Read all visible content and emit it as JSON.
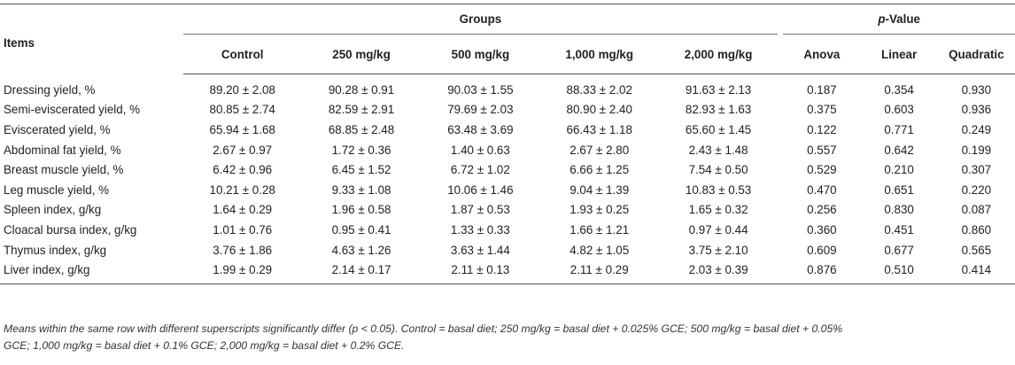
{
  "header": {
    "items": "Items",
    "groups": "Groups",
    "pvalue_italic": "p",
    "pvalue_rest": "-Value",
    "group_columns": [
      "Control",
      "250 mg/kg",
      "500 mg/kg",
      "1,000 mg/kg",
      "2,000 mg/kg"
    ],
    "p_columns": [
      "Anova",
      "Linear",
      "Quadratic"
    ]
  },
  "rows": [
    {
      "label": "Dressing yield, %",
      "values": [
        "89.20 ± 2.08",
        "90.28 ± 0.91",
        "90.03 ± 1.55",
        "88.33 ± 2.02",
        "91.63 ± 2.13"
      ],
      "p": [
        "0.187",
        "0.354",
        "0.930"
      ]
    },
    {
      "label": "Semi-eviscerated yield, %",
      "values": [
        "80.85 ± 2.74",
        "82.59 ± 2.91",
        "79.69 ± 2.03",
        "80.90 ± 2.40",
        "82.93 ± 1.63"
      ],
      "p": [
        "0.375",
        "0.603",
        "0.936"
      ]
    },
    {
      "label": "Eviscerated yield, %",
      "values": [
        "65.94 ± 1.68",
        "68.85 ± 2.48",
        "63.48 ± 3.69",
        "66.43 ± 1.18",
        "65.60 ± 1.45"
      ],
      "p": [
        "0.122",
        "0.771",
        "0.249"
      ]
    },
    {
      "label": "Abdominal fat yield, %",
      "values": [
        "2.67 ± 0.97",
        "1.72 ± 0.36",
        "1.40 ± 0.63",
        "2.67 ± 2.80",
        "2.43 ± 1.48"
      ],
      "p": [
        "0.557",
        "0.642",
        "0.199"
      ]
    },
    {
      "label": "Breast muscle yield, %",
      "values": [
        "6.42 ± 0.96",
        "6.45 ± 1.52",
        "6.72 ± 1.02",
        "6.66 ± 1.25",
        "7.54 ± 0.50"
      ],
      "p": [
        "0.529",
        "0.210",
        "0.307"
      ]
    },
    {
      "label": "Leg muscle yield, %",
      "values": [
        "10.21 ± 0.28",
        "9.33 ± 1.08",
        "10.06 ± 1.46",
        "9.04 ± 1.39",
        "10.83 ± 0.53"
      ],
      "p": [
        "0.470",
        "0.651",
        "0.220"
      ]
    },
    {
      "label": "Spleen index, g/kg",
      "values": [
        "1.64 ± 0.29",
        "1.96 ± 0.58",
        "1.87 ± 0.53",
        "1.93 ± 0.25",
        "1.65 ± 0.32"
      ],
      "p": [
        "0.256",
        "0.830",
        "0.087"
      ]
    },
    {
      "label": "Cloacal bursa index, g/kg",
      "values": [
        "1.01 ± 0.76",
        "0.95 ± 0.41",
        "1.33 ± 0.33",
        "1.66 ± 1.21",
        "0.97 ± 0.44"
      ],
      "p": [
        "0.360",
        "0.451",
        "0.860"
      ]
    },
    {
      "label": "Thymus index, g/kg",
      "values": [
        "3.76 ± 1.86",
        "4.63 ± 1.26",
        "3.63 ± 1.44",
        "4.82 ± 1.05",
        "3.75 ± 2.10"
      ],
      "p": [
        "0.609",
        "0.677",
        "0.565"
      ]
    },
    {
      "label": "Liver index, g/kg",
      "values": [
        "1.99 ± 0.29",
        "2.14 ± 0.17",
        "2.11 ± 0.13",
        "2.11 ± 0.29",
        "2.03 ± 0.39"
      ],
      "p": [
        "0.876",
        "0.510",
        "0.414"
      ]
    }
  ],
  "footnote": {
    "line1": "Means within the same row with different superscripts significantly differ (p < 0.05). Control = basal diet; 250 mg/kg = basal diet + 0.025% GCE; 500 mg/kg = basal diet + 0.05%",
    "line2": "GCE; 1,000 mg/kg = basal diet + 0.1% GCE; 2,000 mg/kg = basal diet + 0.2% GCE."
  }
}
